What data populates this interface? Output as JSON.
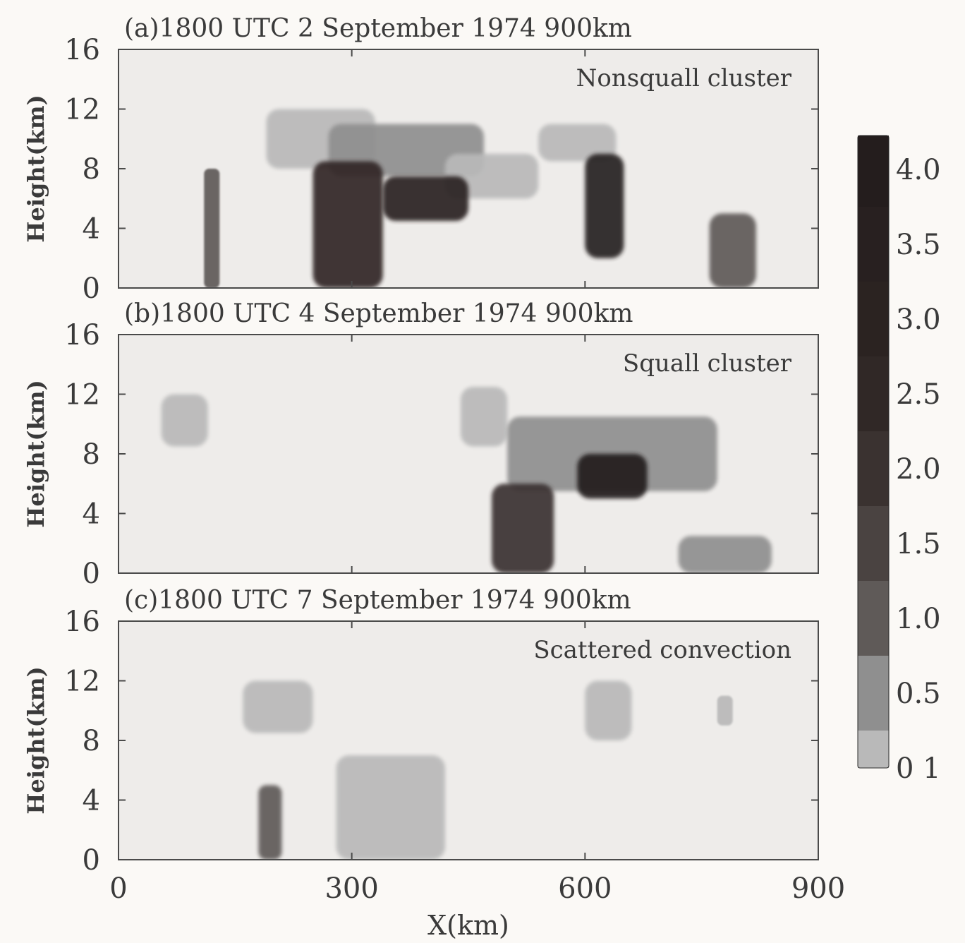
{
  "chart_data": {
    "type": "heatmap",
    "x_axis": {
      "label": "X(km)",
      "range": [
        0,
        900
      ],
      "ticks": [
        0,
        300,
        600,
        900
      ]
    },
    "y_axis": {
      "label": "Height(km)",
      "range": [
        0,
        16
      ],
      "ticks": [
        0,
        4,
        8,
        12,
        16
      ]
    },
    "colorbar": {
      "levels": [
        0.1,
        0.5,
        1.0,
        1.5,
        2.0,
        2.5,
        3.0,
        3.5,
        4.0
      ],
      "tick_labels": [
        "0 1",
        "0.5",
        "1.0",
        "1.5",
        "2.0",
        "2.5",
        "3.0",
        "3.5",
        "4.0"
      ],
      "colors": [
        "#b9b9b9",
        "#8f8f8f",
        "#5f5a58",
        "#4a4341",
        "#3a3230",
        "#302826",
        "#2b2321",
        "#282020",
        "#241d1d"
      ]
    },
    "panels": [
      {
        "title": "(a)1800 UTC 2 September 1974 900km",
        "annotation": "Nonsquall cluster",
        "features": [
          {
            "x": [
              190,
              330
            ],
            "z": [
              8.0,
              12.0
            ],
            "value": 0.3
          },
          {
            "x": [
              270,
              470
            ],
            "z": [
              7.5,
              11.0
            ],
            "value": 0.6
          },
          {
            "x": [
              420,
              540
            ],
            "z": [
              6.0,
              9.0
            ],
            "value": 0.3
          },
          {
            "x": [
              540,
              640
            ],
            "z": [
              8.5,
              11.0
            ],
            "value": 0.2
          },
          {
            "x": [
              250,
              340
            ],
            "z": [
              0.0,
              8.5
            ],
            "value": 2.5
          },
          {
            "x": [
              340,
              450
            ],
            "z": [
              4.5,
              7.5
            ],
            "value": 3.0
          },
          {
            "x": [
              600,
              650
            ],
            "z": [
              2.0,
              9.0
            ],
            "value": 3.5
          },
          {
            "x": [
              760,
              820
            ],
            "z": [
              0.0,
              5.0
            ],
            "value": 1.0
          },
          {
            "x": [
              110,
              130
            ],
            "z": [
              0.0,
              8.0
            ],
            "value": 1.0
          }
        ]
      },
      {
        "title": "(b)1800 UTC 4 September 1974 900km",
        "annotation": "Squall cluster",
        "features": [
          {
            "x": [
              55,
              115
            ],
            "z": [
              8.5,
              12.0
            ],
            "value": 0.3
          },
          {
            "x": [
              440,
              500
            ],
            "z": [
              8.5,
              12.5
            ],
            "value": 0.2
          },
          {
            "x": [
              500,
              770
            ],
            "z": [
              5.5,
              10.5
            ],
            "value": 0.5
          },
          {
            "x": [
              590,
              680
            ],
            "z": [
              5.0,
              8.0
            ],
            "value": 4.0
          },
          {
            "x": [
              480,
              560
            ],
            "z": [
              0.0,
              6.0
            ],
            "value": 2.0
          },
          {
            "x": [
              720,
              840
            ],
            "z": [
              0.0,
              2.5
            ],
            "value": 0.5
          }
        ]
      },
      {
        "title": "(c)1800 UTC 7 September 1974 900km",
        "annotation": "Scattered convection",
        "features": [
          {
            "x": [
              160,
              250
            ],
            "z": [
              8.5,
              12.0
            ],
            "value": 0.3
          },
          {
            "x": [
              180,
              210
            ],
            "z": [
              0.0,
              5.0
            ],
            "value": 1.0
          },
          {
            "x": [
              280,
              420
            ],
            "z": [
              0.0,
              7.0
            ],
            "value": 0.3
          },
          {
            "x": [
              600,
              660
            ],
            "z": [
              8.0,
              12.0
            ],
            "value": 0.2
          },
          {
            "x": [
              770,
              790
            ],
            "z": [
              9.0,
              11.0
            ],
            "value": 0.3
          }
        ]
      }
    ]
  }
}
